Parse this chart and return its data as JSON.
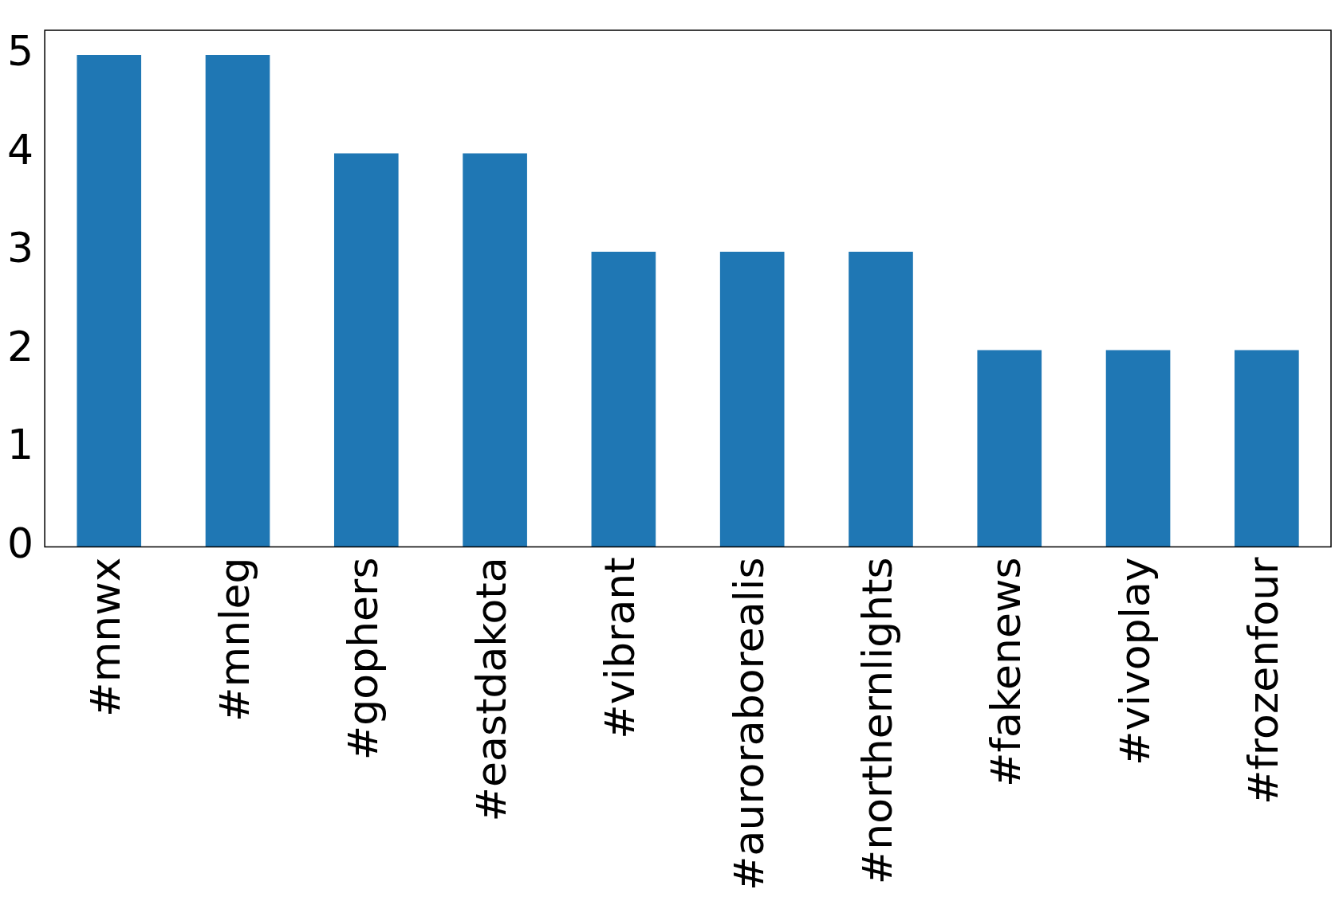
{
  "chart_data": {
    "type": "bar",
    "categories": [
      "#mnwx",
      "#mnleg",
      "#gophers",
      "#eastdakota",
      "#vibrant",
      "#auroraborealis",
      "#northernlights",
      "#fakenews",
      "#vivoplay",
      "#frozenfour"
    ],
    "values": [
      5,
      5,
      4,
      4,
      3,
      3,
      3,
      2,
      2,
      2
    ],
    "color": "#1f77b4",
    "ylim": [
      0,
      5.25
    ],
    "yticks": [
      0,
      1,
      2,
      3,
      4,
      5
    ],
    "grid": false,
    "legend": false
  }
}
